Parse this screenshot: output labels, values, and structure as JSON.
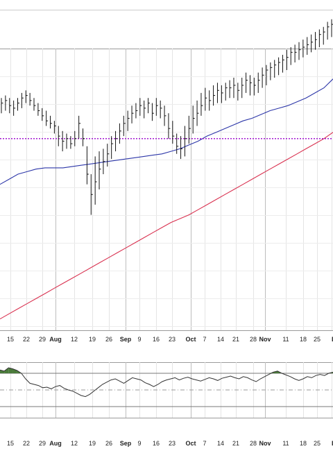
{
  "chart_data": [
    {
      "type": "bar",
      "subtype": "ohlc",
      "x_tick_labels": [
        "15",
        "22",
        "29",
        "Aug",
        "12",
        "19",
        "26",
        "Sep",
        "9",
        "16",
        "23",
        "Oct",
        "7",
        "14",
        "21",
        "28",
        "Nov",
        "11",
        "18",
        "25",
        "De"
      ],
      "month_labels": [
        "Aug",
        "Sep",
        "Oct",
        "Nov",
        "De"
      ],
      "grid": true,
      "ylim": [
        0,
        100
      ],
      "resistance_level": 70,
      "resistance_color": "#9900cc",
      "ma_fast_color": "#2b35a8",
      "ma_slow_color": "#d9304f",
      "ma_fast": [
        52,
        54,
        56,
        57,
        58,
        58.5,
        58.5,
        58.5,
        59,
        59.5,
        60,
        60.5,
        61,
        61.5,
        62,
        62.5,
        63,
        63.5,
        64,
        65,
        66,
        67.5,
        69,
        71,
        72.5,
        74,
        75.5,
        77,
        78,
        79.5,
        81,
        82,
        83,
        84.5,
        86,
        88,
        90,
        93.5
      ],
      "ma_slow": [
        -1,
        1,
        3,
        5,
        7,
        9,
        11,
        13,
        15,
        17,
        19,
        21,
        23,
        25,
        27,
        29,
        31,
        33,
        35,
        37,
        38.5,
        40,
        42,
        44,
        46,
        48,
        50,
        52,
        54,
        56,
        58,
        60,
        62,
        64,
        66,
        68,
        70,
        72.5
      ],
      "ohlc": [
        {
          "h": 86,
          "l": 80,
          "c": 84
        },
        {
          "h": 87,
          "l": 81,
          "c": 85
        },
        {
          "h": 86,
          "l": 80,
          "c": 83
        },
        {
          "h": 85,
          "l": 79,
          "c": 82
        },
        {
          "h": 86,
          "l": 81,
          "c": 84
        },
        {
          "h": 88,
          "l": 82,
          "c": 86
        },
        {
          "h": 89,
          "l": 84,
          "c": 87
        },
        {
          "h": 88,
          "l": 83,
          "c": 85
        },
        {
          "h": 86,
          "l": 81,
          "c": 83
        },
        {
          "h": 84,
          "l": 79,
          "c": 81
        },
        {
          "h": 82,
          "l": 77,
          "c": 79
        },
        {
          "h": 81,
          "l": 75,
          "c": 77
        },
        {
          "h": 79,
          "l": 74,
          "c": 76
        },
        {
          "h": 77,
          "l": 72,
          "c": 75
        },
        {
          "h": 75,
          "l": 67,
          "c": 71
        },
        {
          "h": 73,
          "l": 65,
          "c": 69
        },
        {
          "h": 72,
          "l": 66,
          "c": 70
        },
        {
          "h": 71,
          "l": 66,
          "c": 68
        },
        {
          "h": 73,
          "l": 67,
          "c": 70
        },
        {
          "h": 79,
          "l": 70,
          "c": 76
        },
        {
          "h": 74,
          "l": 67,
          "c": 70
        },
        {
          "h": 67,
          "l": 52,
          "c": 56
        },
        {
          "h": 56,
          "l": 40,
          "c": 48
        },
        {
          "h": 63,
          "l": 44,
          "c": 53
        },
        {
          "h": 65,
          "l": 50,
          "c": 58
        },
        {
          "h": 66,
          "l": 56,
          "c": 61
        },
        {
          "h": 68,
          "l": 59,
          "c": 64
        },
        {
          "h": 71,
          "l": 62,
          "c": 68
        },
        {
          "h": 73,
          "l": 65,
          "c": 70
        },
        {
          "h": 76,
          "l": 68,
          "c": 73
        },
        {
          "h": 79,
          "l": 71,
          "c": 76
        },
        {
          "h": 81,
          "l": 73,
          "c": 78
        },
        {
          "h": 83,
          "l": 76,
          "c": 80
        },
        {
          "h": 84,
          "l": 78,
          "c": 81
        },
        {
          "h": 86,
          "l": 79,
          "c": 83
        },
        {
          "h": 85,
          "l": 78,
          "c": 82
        },
        {
          "h": 86,
          "l": 80,
          "c": 84
        },
        {
          "h": 84,
          "l": 77,
          "c": 80
        },
        {
          "h": 86,
          "l": 79,
          "c": 83
        },
        {
          "h": 85,
          "l": 78,
          "c": 82
        },
        {
          "h": 83,
          "l": 75,
          "c": 79
        },
        {
          "h": 80,
          "l": 70,
          "c": 74
        },
        {
          "h": 77,
          "l": 68,
          "c": 71
        },
        {
          "h": 72,
          "l": 64,
          "c": 67
        },
        {
          "h": 71,
          "l": 62,
          "c": 66
        },
        {
          "h": 75,
          "l": 63,
          "c": 70
        },
        {
          "h": 79,
          "l": 68,
          "c": 74
        },
        {
          "h": 83,
          "l": 72,
          "c": 78
        },
        {
          "h": 85,
          "l": 75,
          "c": 80
        },
        {
          "h": 88,
          "l": 79,
          "c": 83
        },
        {
          "h": 90,
          "l": 81,
          "c": 86
        },
        {
          "h": 89,
          "l": 81,
          "c": 85
        },
        {
          "h": 91,
          "l": 83,
          "c": 87
        },
        {
          "h": 92,
          "l": 84,
          "c": 89
        },
        {
          "h": 91,
          "l": 84,
          "c": 88
        },
        {
          "h": 92,
          "l": 85,
          "c": 90
        },
        {
          "h": 93,
          "l": 86,
          "c": 90
        },
        {
          "h": 94,
          "l": 86,
          "c": 91
        },
        {
          "h": 92,
          "l": 85,
          "c": 89
        },
        {
          "h": 94,
          "l": 86,
          "c": 91
        },
        {
          "h": 96,
          "l": 88,
          "c": 93
        },
        {
          "h": 95,
          "l": 87,
          "c": 92
        },
        {
          "h": 94,
          "l": 87,
          "c": 91
        },
        {
          "h": 96,
          "l": 88,
          "c": 93
        },
        {
          "h": 98,
          "l": 90,
          "c": 95
        },
        {
          "h": 99,
          "l": 91,
          "c": 97
        },
        {
          "h": 100,
          "l": 93,
          "c": 98
        },
        {
          "h": 101,
          "l": 94,
          "c": 99
        },
        {
          "h": 102,
          "l": 95,
          "c": 100
        },
        {
          "h": 103,
          "l": 96,
          "c": 101
        },
        {
          "h": 105,
          "l": 97,
          "c": 102
        },
        {
          "h": 106,
          "l": 99,
          "c": 104
        },
        {
          "h": 107,
          "l": 100,
          "c": 104
        },
        {
          "h": 108,
          "l": 101,
          "c": 105
        },
        {
          "h": 109,
          "l": 102,
          "c": 106
        },
        {
          "h": 110,
          "l": 103,
          "c": 107
        },
        {
          "h": 111,
          "l": 104,
          "c": 108
        },
        {
          "h": 112,
          "l": 105,
          "c": 109
        },
        {
          "h": 113,
          "l": 106,
          "c": 111
        },
        {
          "h": 114,
          "l": 107,
          "c": 112
        },
        {
          "h": 116,
          "l": 109,
          "c": 114
        },
        {
          "h": 117,
          "l": 110,
          "c": 115
        }
      ]
    },
    {
      "type": "line",
      "subtype": "oscillator",
      "x_tick_labels": [
        "15",
        "22",
        "29",
        "Aug",
        "12",
        "19",
        "26",
        "Sep",
        "9",
        "16",
        "23",
        "Oct",
        "7",
        "14",
        "21",
        "28",
        "Nov",
        "11",
        "18",
        "25",
        "De"
      ],
      "ylim": [
        0,
        100
      ],
      "bands": [
        80,
        50,
        20
      ],
      "line_color": "#333333",
      "overbought_fill": "#4a7a3a",
      "values": [
        86,
        84,
        90,
        88,
        85,
        80,
        70,
        62,
        60,
        58,
        54,
        55,
        52,
        56,
        58,
        53,
        50,
        48,
        44,
        40,
        38,
        42,
        48,
        54,
        60,
        64,
        68,
        70,
        66,
        62,
        67,
        72,
        70,
        68,
        63,
        60,
        56,
        60,
        65,
        68,
        70,
        72,
        68,
        71,
        73,
        70,
        68,
        66,
        69,
        72,
        70,
        67,
        71,
        73,
        75,
        72,
        70,
        74,
        72,
        68,
        65,
        70,
        74,
        78,
        82,
        84,
        80,
        77,
        74,
        70,
        67,
        70,
        74,
        72,
        76,
        78,
        76,
        80,
        82
      ]
    }
  ]
}
